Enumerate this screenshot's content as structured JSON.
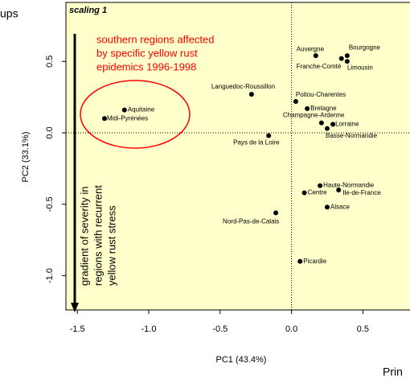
{
  "chart_data": {
    "type": "scatter",
    "title": "scaling 1",
    "x_label": "PC1 (43.4%)",
    "y_label": "PC2 (33.1%)",
    "xlim": [
      -1.58,
      0.83
    ],
    "ylim": [
      -1.24,
      0.913
    ],
    "xticks": [
      -1.5,
      {
        "value": -1,
        "label": "-1.0"
      },
      -0.5,
      {
        "value": 0,
        "label": "0.0"
      },
      0.5
    ],
    "yticks": [
      0.5,
      {
        "value": 0,
        "label": "0.0"
      },
      -0.5,
      {
        "value": -1,
        "label": "-1.0"
      }
    ],
    "series": [
      {
        "color": "#000000",
        "labels": [
          "Auvergne",
          "Bourgogne",
          "Franche-Comté",
          "Limousin",
          "Languedoc-Roussillon",
          "Poitou-Charentes",
          "Bretagne",
          "Champagne-Ardenne",
          "Lorraine",
          "Basse-Normandie",
          "Pays de la Loire",
          "Aquitaine",
          "Midi-Pyrénées",
          "Haute-Normandie",
          "Centre",
          "Ile-de-France",
          "Alsace",
          "Nord-Pas-de-Calais",
          "Picardie"
        ],
        "x": [
          0.17,
          0.39,
          0.35,
          0.39,
          -0.28,
          0.03,
          0.11,
          0.21,
          0.29,
          0.25,
          -0.16,
          -1.17,
          -1.31,
          0.2,
          0.09,
          0.33,
          0.25,
          -0.11,
          0.06
        ],
        "values": [
          0.54,
          0.54,
          0.52,
          0.5,
          0.27,
          0.22,
          0.17,
          0.07,
          0.06,
          0.03,
          -0.02,
          0.16,
          0.1,
          -0.37,
          -0.42,
          -0.4,
          -0.52,
          -0.56,
          -0.9
        ]
      }
    ],
    "annotations": {
      "ellipse_text": [
        "southern regions affected",
        "by specific yellow rust",
        "epidemics 1996-1998"
      ],
      "gradient_text": [
        "gradient of severity in",
        "regions with recurrent",
        "yellow rust stress"
      ],
      "cropped_left": "ups",
      "cropped_bottom": "Prin"
    }
  }
}
